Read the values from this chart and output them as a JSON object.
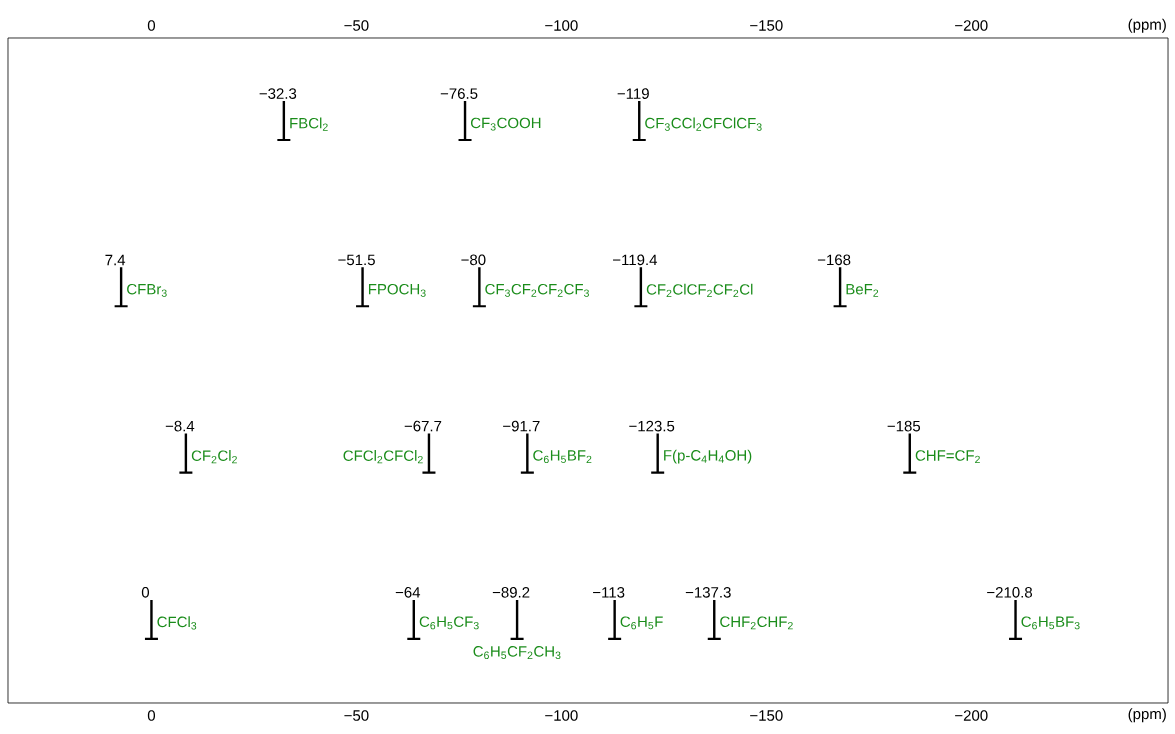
{
  "chart_data": {
    "type": "scatter",
    "orientation": "horizontal",
    "xlabel": "(ppm)",
    "x2label": "(ppm)",
    "categories": [
      null,
      null,
      null,
      null
    ],
    "xlim": [
      35,
      -248
    ],
    "xticks": [
      {
        "value": 0,
        "label": "0"
      },
      {
        "value": -50,
        "label": "−50"
      },
      {
        "value": -100,
        "label": "−100"
      },
      {
        "value": -150,
        "label": "−150"
      },
      {
        "value": -200,
        "label": "−200"
      }
    ],
    "x2lim": [
      35,
      -248
    ],
    "x2ticks": [
      {
        "value": 0,
        "label": "0"
      },
      {
        "value": -50,
        "label": "−50"
      },
      {
        "value": -100,
        "label": "−100"
      },
      {
        "value": -150,
        "label": "−150"
      },
      {
        "value": -200,
        "label": "−200"
      }
    ],
    "tick_labels": "x",
    "series": [
      {
        "color": "#000000",
        "values": [
          -32.3,
          7.4,
          -8.4,
          0
        ],
        "value_labels": [
          "−32.3",
          "7.4",
          "−8.4",
          "0"
        ]
      },
      {
        "color": "#000000",
        "values": [
          -76.5,
          -51.5,
          -67.7,
          -64
        ],
        "value_labels": [
          "−76.5",
          "−51.5",
          "−67.7",
          "−64"
        ]
      },
      {
        "color": "#000000",
        "values": [
          -119,
          -80,
          -91.7,
          -89.2
        ],
        "value_labels": [
          "−119",
          "−80",
          "−91.7",
          "−89.2"
        ]
      },
      {
        "color": "#000000",
        "values": [
          null,
          -119.4,
          -123.5,
          -113
        ],
        "value_labels": [
          null,
          "−119.4",
          "−123.5",
          "−113"
        ]
      },
      {
        "color": "#000000",
        "values": [
          null,
          -168,
          -185,
          -137.3
        ],
        "value_labels": [
          null,
          "−168",
          "−185",
          "−137.3"
        ]
      },
      {
        "color": "#000000",
        "values": [
          null,
          null,
          null,
          -210.8
        ],
        "value_labels": [
          null,
          null,
          null,
          "−210.8"
        ]
      }
    ],
    "annotations": [
      "FBCl$_{2}$",
      "CF$_{3}$COOH",
      "CF$_{3}$CCl$_{2}$CFClCF$_{3}$",
      "CFBr$_{3}$",
      "FPOCH$_{3}$",
      "CF$_{3}$CF$_{2}$CF$_{2}$CF$_{3}$",
      "CF$_{2}$ClCF$_{2}$CF$_{2}$Cl",
      "BeF$_{2}$",
      "CF$_{2}$Cl$_{2}$",
      "CFCl$_{2}$CFCl$_{2}$",
      "C$_{6}$H$_{5}$BF$_{2}$",
      "F(p-C$_{4}$H$_{4}$OH)",
      "CHF=CF$_{2}$",
      "CFCl$_{3}$",
      "C$_{6}$H$_{5}$CF$_{3}$",
      "C$_{6}$H$_{5}$CF$_{2}$CH$_{3}$",
      "C$_{6}$H$_{5}$F",
      "CHF$_{2}$CHF$_{2}$",
      "C$_{6}$H$_{5}$BF$_{3}$"
    ]
  }
}
